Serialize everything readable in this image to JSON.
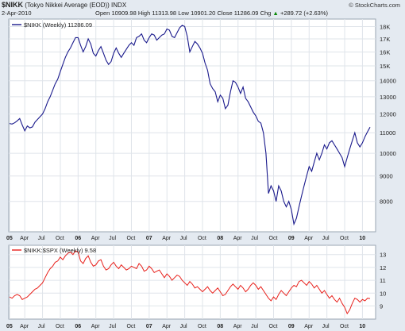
{
  "header": {
    "symbol": "$NIKK",
    "name": "(Tokyo Nikkei Average (EOD))",
    "exchange": "INDX",
    "date": "2-Apr-2010",
    "copyright": "© StockCharts.com",
    "open_label": "Open",
    "open_value": "10909.98",
    "high_label": "High",
    "high_value": "11313.98",
    "low_label": "Low",
    "low_value": "10901.20",
    "close_label": "Close",
    "close_value": "11286.09",
    "chg_label": "Chg",
    "chg_value": "+289.72 (+2.63%)",
    "chg_arrow": "▲"
  },
  "colors": {
    "top_series": "#1a1a8c",
    "bottom_series": "#e8201b",
    "panel_bg": "#ffffff",
    "frame_bg": "#e4eaf1",
    "grid": "#dfe4ea"
  },
  "x_axis_labels": [
    {
      "t": 0,
      "label": "05",
      "bold": true
    },
    {
      "t": 6,
      "label": "Apr",
      "bold": false
    },
    {
      "t": 13,
      "label": "Jul",
      "bold": false
    },
    {
      "t": 20,
      "label": "Oct",
      "bold": false
    },
    {
      "t": 27,
      "label": "06",
      "bold": true
    },
    {
      "t": 34,
      "label": "Apr",
      "bold": false
    },
    {
      "t": 41,
      "label": "Jul",
      "bold": false
    },
    {
      "t": 48,
      "label": "Oct",
      "bold": false
    },
    {
      "t": 55,
      "label": "07",
      "bold": true
    },
    {
      "t": 62,
      "label": "Apr",
      "bold": false
    },
    {
      "t": 69,
      "label": "Jul",
      "bold": false
    },
    {
      "t": 76,
      "label": "Oct",
      "bold": false
    },
    {
      "t": 83,
      "label": "08",
      "bold": true
    },
    {
      "t": 90,
      "label": "Apr",
      "bold": false
    },
    {
      "t": 97,
      "label": "Jul",
      "bold": false
    },
    {
      "t": 104,
      "label": "Oct",
      "bold": false
    },
    {
      "t": 111,
      "label": "09",
      "bold": true
    },
    {
      "t": 118,
      "label": "Apr",
      "bold": false
    },
    {
      "t": 125,
      "label": "Jul",
      "bold": false
    },
    {
      "t": 132,
      "label": "Oct",
      "bold": false
    },
    {
      "t": 139,
      "label": "10",
      "bold": true
    }
  ],
  "chart_data": [
    {
      "type": "line",
      "legend": "$NIKK (Weekly) 11286.09",
      "y_scale": "log",
      "ylim": [
        7000,
        18500
      ],
      "y_ticks": [
        8000,
        9000,
        10000,
        11000,
        12000,
        13000,
        14000,
        15000,
        16000,
        17000,
        18000
      ],
      "y_tick_labels": [
        "8000",
        "9000",
        "10000",
        "11000",
        "12000",
        "13000",
        "14000",
        "15K",
        "16K",
        "17K",
        "18K"
      ],
      "grid": true,
      "series": [
        {
          "x_unit": "quarter-month",
          "x": [
            0,
            1,
            2,
            3,
            4,
            5,
            6,
            7,
            8,
            9,
            10,
            11,
            12,
            13,
            14,
            15,
            16,
            17,
            18,
            19,
            20,
            21,
            22,
            23,
            24,
            25,
            26,
            27,
            28,
            29,
            30,
            31,
            32,
            33,
            34,
            35,
            36,
            37,
            38,
            39,
            40,
            41,
            42,
            43,
            44,
            45,
            46,
            47,
            48,
            49,
            50,
            51,
            52,
            53,
            54,
            55,
            56,
            57,
            58,
            59,
            60,
            61,
            62,
            63,
            64,
            65,
            66,
            67,
            68,
            69,
            70,
            71,
            72,
            73,
            74,
            75,
            76,
            77,
            78,
            79,
            80,
            81,
            82,
            83,
            84,
            85,
            86,
            87,
            88,
            89,
            90,
            91,
            92,
            93,
            94,
            95,
            96,
            97,
            98,
            99,
            100,
            101,
            102,
            103,
            104,
            105,
            106,
            107,
            108,
            109,
            110,
            111,
            112,
            113,
            114,
            115,
            116,
            117,
            118,
            119,
            120,
            121,
            122,
            123,
            124,
            125,
            126,
            127,
            128,
            129,
            130,
            131,
            132,
            133,
            134,
            135,
            136,
            137,
            138,
            139,
            140,
            141,
            142
          ],
          "y": [
            11480,
            11450,
            11520,
            11620,
            11750,
            11400,
            11100,
            11350,
            11250,
            11300,
            11550,
            11700,
            11850,
            12000,
            12300,
            12700,
            13000,
            13400,
            13800,
            14100,
            14600,
            15100,
            15600,
            16000,
            16300,
            16700,
            17100,
            17100,
            16500,
            16000,
            16400,
            17000,
            16600,
            15900,
            15700,
            16100,
            16400,
            15900,
            15400,
            15100,
            15300,
            15900,
            16300,
            15900,
            15600,
            15900,
            16200,
            16500,
            16700,
            16500,
            17100,
            17200,
            17400,
            16900,
            16700,
            17100,
            17400,
            17300,
            16900,
            17100,
            17300,
            17400,
            17800,
            17700,
            17200,
            17100,
            17500,
            17900,
            18100,
            18000,
            17200,
            16000,
            16400,
            16800,
            16600,
            16300,
            15900,
            15200,
            14700,
            13800,
            13500,
            13300,
            12700,
            13100,
            12900,
            12300,
            12500,
            13300,
            14000,
            13900,
            13600,
            13200,
            13600,
            12900,
            12700,
            12400,
            12100,
            11900,
            11600,
            11500,
            11000,
            10000,
            8300,
            8600,
            8400,
            8000,
            8600,
            8400,
            8000,
            7800,
            8000,
            7700,
            7200,
            7400,
            7800,
            8200,
            8600,
            9000,
            9400,
            9200,
            9600,
            10000,
            9700,
            10000,
            10400,
            10200,
            10500,
            10600,
            10400,
            10200,
            10000,
            9800,
            9400,
            9800,
            10200,
            10600,
            11000,
            10500,
            10300,
            10500,
            10800,
            11050,
            11286
          ]
        }
      ]
    },
    {
      "type": "line",
      "legend": "$NIKK:$SPX (Weekly) 9.58",
      "ylim": [
        8.1,
        13.6
      ],
      "y_ticks": [
        9,
        10,
        11,
        12,
        13
      ],
      "y_tick_labels": [
        "9",
        "10",
        "11",
        "12",
        "13"
      ],
      "grid": true,
      "series": [
        {
          "x_unit": "quarter-month",
          "x": [
            0,
            1,
            2,
            3,
            4,
            5,
            6,
            7,
            8,
            9,
            10,
            11,
            12,
            13,
            14,
            15,
            16,
            17,
            18,
            19,
            20,
            21,
            22,
            23,
            24,
            25,
            26,
            27,
            28,
            29,
            30,
            31,
            32,
            33,
            34,
            35,
            36,
            37,
            38,
            39,
            40,
            41,
            42,
            43,
            44,
            45,
            46,
            47,
            48,
            49,
            50,
            51,
            52,
            53,
            54,
            55,
            56,
            57,
            58,
            59,
            60,
            61,
            62,
            63,
            64,
            65,
            66,
            67,
            68,
            69,
            70,
            71,
            72,
            73,
            74,
            75,
            76,
            77,
            78,
            79,
            80,
            81,
            82,
            83,
            84,
            85,
            86,
            87,
            88,
            89,
            90,
            91,
            92,
            93,
            94,
            95,
            96,
            97,
            98,
            99,
            100,
            101,
            102,
            103,
            104,
            105,
            106,
            107,
            108,
            109,
            110,
            111,
            112,
            113,
            114,
            115,
            116,
            117,
            118,
            119,
            120,
            121,
            122,
            123,
            124,
            125,
            126,
            127,
            128,
            129,
            130,
            131,
            132,
            133,
            134,
            135,
            136,
            137,
            138,
            139,
            140,
            141,
            142
          ],
          "y": [
            9.7,
            9.6,
            9.8,
            9.9,
            9.8,
            9.5,
            9.6,
            9.7,
            9.9,
            10.1,
            10.3,
            10.4,
            10.6,
            10.8,
            11.2,
            11.6,
            11.9,
            12.1,
            12.4,
            12.5,
            12.8,
            12.6,
            12.9,
            13.1,
            13.2,
            13.0,
            13.3,
            13.2,
            12.5,
            12.3,
            12.7,
            12.9,
            12.4,
            12.1,
            12.2,
            12.5,
            12.6,
            12.1,
            11.8,
            11.9,
            12.2,
            12.4,
            12.1,
            11.9,
            12.2,
            12.0,
            11.8,
            11.9,
            12.1,
            12.0,
            11.9,
            12.3,
            12.1,
            11.7,
            11.8,
            12.1,
            11.9,
            11.6,
            11.7,
            11.8,
            11.5,
            11.2,
            11.5,
            11.3,
            11.0,
            11.2,
            11.4,
            11.3,
            11.0,
            10.8,
            10.6,
            10.9,
            10.7,
            10.4,
            10.5,
            10.3,
            10.1,
            10.3,
            10.5,
            10.2,
            10.0,
            10.2,
            10.4,
            10.1,
            9.8,
            9.9,
            10.2,
            10.5,
            10.7,
            10.5,
            10.3,
            10.6,
            10.4,
            10.1,
            10.3,
            10.6,
            10.8,
            10.6,
            10.3,
            10.5,
            10.2,
            9.9,
            9.6,
            9.4,
            9.7,
            9.5,
            9.9,
            10.2,
            10.0,
            9.8,
            10.1,
            10.4,
            10.6,
            10.5,
            10.9,
            11.0,
            10.8,
            10.6,
            10.9,
            10.7,
            10.4,
            10.6,
            10.3,
            10.0,
            10.2,
            9.9,
            9.6,
            9.8,
            9.5,
            9.3,
            9.6,
            9.2,
            8.9,
            8.4,
            8.7,
            9.2,
            9.6,
            9.5,
            9.3,
            9.5,
            9.4,
            9.6,
            9.58
          ]
        }
      ]
    }
  ]
}
